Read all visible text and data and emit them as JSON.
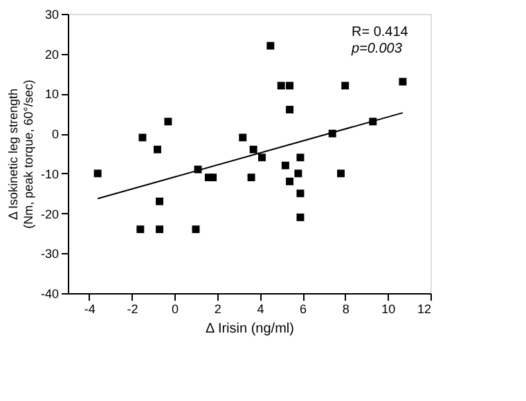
{
  "chart_data": {
    "type": "scatter",
    "xlabel": "Δ Irisin (ng/ml)",
    "ylabel": "Δ Isokinetic leg strength\n(Nm, peak torque, 60°/sec)",
    "xlim": [
      -5,
      12
    ],
    "xticks": [
      -4,
      -2,
      0,
      2,
      4,
      6,
      8,
      10,
      12
    ],
    "ylim": [
      -40,
      30
    ],
    "yticks": [
      -40,
      -30,
      -20,
      -10,
      0,
      10,
      20,
      30
    ],
    "grid": false,
    "annotations": [
      "R= 0.414",
      "p=0.003"
    ],
    "series": [
      {
        "marker": "square",
        "color": "#000000",
        "x": [
          -3.6,
          -1.5,
          -0.8,
          -0.3,
          1.1,
          3.2,
          3.7,
          4.1,
          4.5,
          5.0,
          5.4,
          5.4,
          5.2,
          5.9,
          7.4,
          8.0,
          9.3,
          10.7,
          1.6,
          1.8,
          3.6,
          5.8,
          5.4,
          5.9,
          5.9,
          7.8,
          -0.7,
          -1.6,
          -0.7,
          1.0
        ],
        "values": [
          -10,
          -1,
          -4,
          3,
          -9,
          -1,
          -4,
          -6,
          22,
          12,
          12,
          6,
          -8,
          -6,
          0,
          12,
          3,
          13,
          -11,
          -11,
          -11,
          -10,
          -12,
          -15,
          -21,
          -10,
          -17,
          -24,
          -24,
          -24
        ]
      },
      {
        "type": "line",
        "marker": "none",
        "color": "#000000",
        "x": [
          -3.6,
          10.7
        ],
        "values": [
          -16.3,
          5.2
        ]
      }
    ]
  }
}
